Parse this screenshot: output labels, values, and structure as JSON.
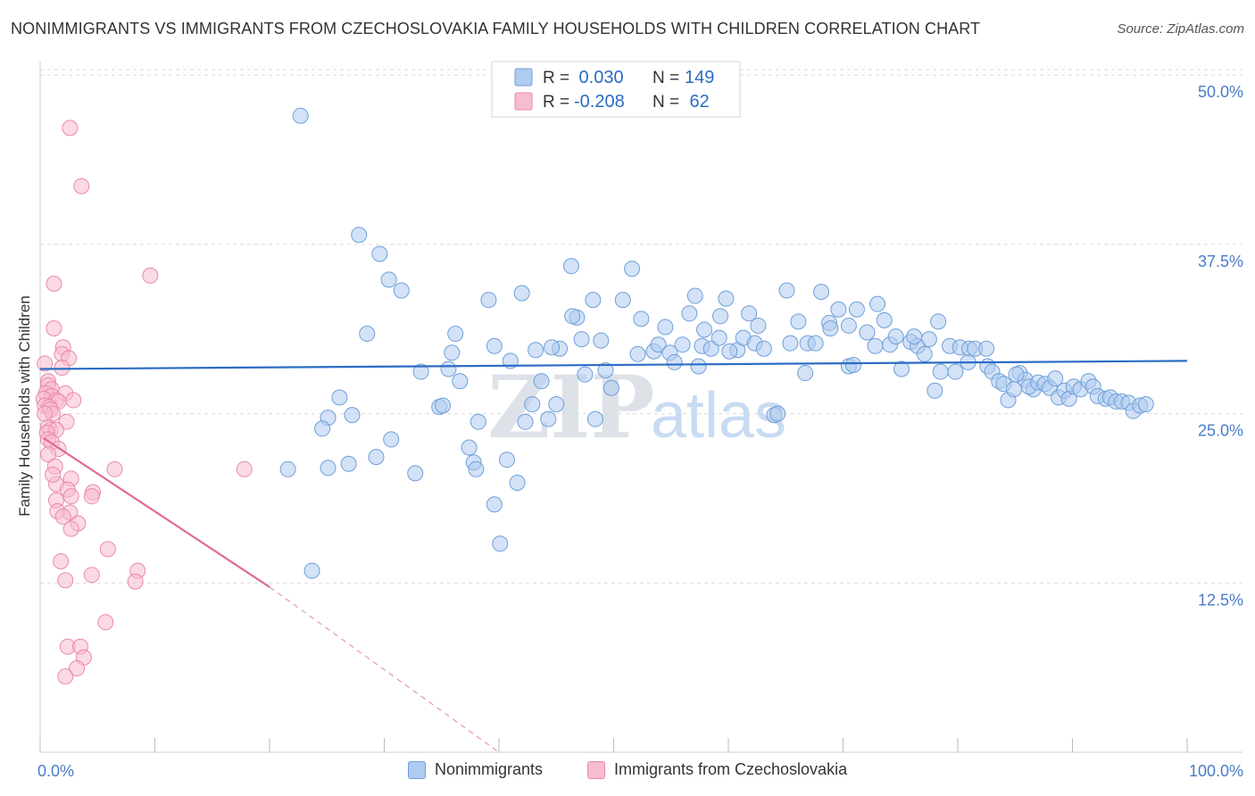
{
  "header": {
    "title": "NONIMMIGRANTS VS IMMIGRANTS FROM CZECHOSLOVAKIA FAMILY HOUSEHOLDS WITH CHILDREN CORRELATION CHART",
    "source": "Source: ZipAtlas.com"
  },
  "watermark": {
    "zip": "ZIP",
    "atlas": "atlas"
  },
  "colors": {
    "blue_fill": "#aecbf0",
    "blue_stroke": "#6f9fd8",
    "blue_line": "#2b6cc4",
    "pink_fill": "#f7bccd",
    "pink_stroke": "#ea8aa9",
    "pink_line": "#e06a93",
    "tick_label": "#4a7cc7",
    "grid": "#d9d9d9"
  },
  "legend_top": {
    "rows": [
      {
        "r_label": "R = ",
        "r_value": " 0.030",
        "n_label": "N = ",
        "n_value": "149"
      },
      {
        "r_label": "R = ",
        "r_value": "-0.208",
        "n_label": "N = ",
        "n_value": " 62"
      }
    ]
  },
  "chart_data": {
    "type": "scatter",
    "title": "NONIMMIGRANTS VS IMMIGRANTS FROM CZECHOSLOVAKIA FAMILY HOUSEHOLDS WITH CHILDREN CORRELATION CHART",
    "xlabel": "",
    "ylabel": "Family Households with Children",
    "xlim": [
      0,
      100
    ],
    "ylim": [
      0,
      51
    ],
    "x_tick_labels": [
      "0.0%",
      "100.0%"
    ],
    "y_ticks": [
      12.5,
      25.0,
      37.5,
      50.0
    ],
    "y_tick_labels": [
      "12.5%",
      "25.0%",
      "37.5%",
      "50.0%"
    ],
    "grid": "horizontal dashed",
    "legend_placement": "bottom-center",
    "series": [
      {
        "name": "Nonimmigrants",
        "color": "#aecbf0",
        "r": 0.03,
        "n": 149,
        "trend": {
          "x0": 0,
          "y0": 28.3,
          "x1": 100,
          "y1": 28.9
        },
        "points": [
          [
            22.7,
            47.0
          ],
          [
            27.8,
            38.2
          ],
          [
            29.6,
            36.8
          ],
          [
            30.4,
            34.9
          ],
          [
            31.5,
            34.1
          ],
          [
            28.5,
            30.9
          ],
          [
            26.1,
            26.2
          ],
          [
            25.1,
            24.7
          ],
          [
            27.2,
            24.9
          ],
          [
            24.6,
            23.9
          ],
          [
            30.6,
            23.1
          ],
          [
            26.9,
            21.3
          ],
          [
            25.1,
            21.0
          ],
          [
            29.3,
            21.8
          ],
          [
            21.6,
            20.9
          ],
          [
            32.7,
            20.6
          ],
          [
            23.7,
            13.4
          ],
          [
            35.6,
            28.3
          ],
          [
            35.9,
            29.5
          ],
          [
            36.2,
            30.9
          ],
          [
            36.6,
            27.4
          ],
          [
            34.8,
            25.5
          ],
          [
            35.1,
            25.6
          ],
          [
            38.2,
            24.4
          ],
          [
            37.8,
            21.4
          ],
          [
            38.0,
            20.9
          ],
          [
            39.1,
            33.4
          ],
          [
            39.6,
            30.0
          ],
          [
            41.0,
            28.9
          ],
          [
            40.7,
            21.6
          ],
          [
            41.6,
            19.9
          ],
          [
            39.6,
            18.3
          ],
          [
            40.1,
            15.4
          ],
          [
            42.0,
            33.9
          ],
          [
            43.2,
            29.7
          ],
          [
            43.7,
            27.4
          ],
          [
            42.9,
            25.7
          ],
          [
            44.3,
            24.6
          ],
          [
            45.3,
            29.8
          ],
          [
            45.0,
            25.7
          ],
          [
            46.3,
            35.9
          ],
          [
            46.8,
            32.1
          ],
          [
            46.4,
            32.2
          ],
          [
            47.2,
            30.5
          ],
          [
            48.2,
            33.4
          ],
          [
            48.9,
            30.4
          ],
          [
            48.4,
            24.6
          ],
          [
            49.3,
            28.2
          ],
          [
            49.8,
            26.9
          ],
          [
            50.8,
            33.4
          ],
          [
            51.6,
            35.7
          ],
          [
            52.1,
            29.4
          ],
          [
            52.4,
            32.0
          ],
          [
            53.5,
            29.6
          ],
          [
            53.9,
            30.1
          ],
          [
            54.5,
            31.4
          ],
          [
            54.9,
            29.5
          ],
          [
            55.3,
            28.8
          ],
          [
            56.0,
            30.1
          ],
          [
            56.6,
            32.4
          ],
          [
            57.1,
            33.7
          ],
          [
            57.7,
            30.0
          ],
          [
            57.9,
            31.2
          ],
          [
            58.5,
            29.8
          ],
          [
            59.3,
            32.2
          ],
          [
            59.2,
            30.6
          ],
          [
            59.8,
            33.5
          ],
          [
            60.8,
            29.7
          ],
          [
            61.3,
            30.6
          ],
          [
            61.8,
            32.4
          ],
          [
            62.3,
            30.2
          ],
          [
            62.6,
            31.5
          ],
          [
            63.1,
            29.8
          ],
          [
            64.0,
            24.9
          ],
          [
            64.3,
            25.0
          ],
          [
            65.1,
            34.1
          ],
          [
            65.4,
            30.2
          ],
          [
            66.1,
            31.8
          ],
          [
            66.7,
            28.0
          ],
          [
            66.9,
            30.2
          ],
          [
            68.1,
            34.0
          ],
          [
            68.8,
            31.7
          ],
          [
            68.9,
            31.3
          ],
          [
            69.6,
            32.7
          ],
          [
            70.5,
            31.5
          ],
          [
            70.5,
            28.5
          ],
          [
            70.9,
            28.6
          ],
          [
            71.2,
            32.7
          ],
          [
            72.1,
            31.0
          ],
          [
            72.8,
            30.0
          ],
          [
            73.0,
            33.1
          ],
          [
            73.6,
            31.9
          ],
          [
            74.1,
            30.1
          ],
          [
            74.6,
            30.7
          ],
          [
            75.1,
            28.3
          ],
          [
            75.9,
            30.3
          ],
          [
            76.5,
            30.0
          ],
          [
            77.1,
            29.4
          ],
          [
            77.5,
            30.5
          ],
          [
            78.3,
            31.8
          ],
          [
            78.0,
            26.7
          ],
          [
            78.5,
            28.1
          ],
          [
            79.3,
            30.0
          ],
          [
            79.8,
            28.1
          ],
          [
            80.2,
            29.9
          ],
          [
            81.0,
            29.8
          ],
          [
            81.5,
            29.8
          ],
          [
            80.9,
            28.8
          ],
          [
            82.5,
            29.8
          ],
          [
            82.6,
            28.5
          ],
          [
            83.0,
            28.1
          ],
          [
            83.6,
            27.4
          ],
          [
            84.0,
            27.2
          ],
          [
            84.4,
            26.0
          ],
          [
            84.9,
            26.8
          ],
          [
            85.4,
            28.0
          ],
          [
            85.9,
            27.5
          ],
          [
            86.6,
            26.8
          ],
          [
            86.2,
            27.0
          ],
          [
            87.0,
            27.3
          ],
          [
            87.6,
            27.2
          ],
          [
            88.0,
            26.9
          ],
          [
            88.5,
            27.6
          ],
          [
            88.8,
            26.2
          ],
          [
            89.3,
            26.7
          ],
          [
            89.7,
            26.1
          ],
          [
            90.1,
            27.0
          ],
          [
            90.7,
            26.8
          ],
          [
            91.4,
            27.4
          ],
          [
            91.8,
            27.0
          ],
          [
            92.2,
            26.3
          ],
          [
            92.9,
            26.1
          ],
          [
            93.3,
            26.2
          ],
          [
            93.8,
            25.9
          ],
          [
            94.3,
            25.9
          ],
          [
            94.9,
            25.8
          ],
          [
            95.3,
            25.2
          ],
          [
            95.9,
            25.6
          ],
          [
            96.4,
            25.7
          ],
          [
            57.4,
            28.5
          ],
          [
            42.3,
            24.4
          ],
          [
            37.4,
            22.5
          ],
          [
            33.2,
            28.1
          ],
          [
            44.6,
            29.9
          ],
          [
            47.5,
            27.9
          ],
          [
            60.1,
            29.6
          ],
          [
            67.6,
            30.2
          ],
          [
            76.2,
            30.7
          ],
          [
            85.1,
            27.9
          ]
        ]
      },
      {
        "name": "Immigrants from Czechoslovakia",
        "color": "#f7bccd",
        "r": -0.208,
        "n": 62,
        "trend": {
          "x0": 0.3,
          "y0": 23.2,
          "x1": 20.0,
          "y1": 12.2,
          "dash_x1": 40.0,
          "dash_y1": 0.0
        },
        "points": [
          [
            2.6,
            46.1
          ],
          [
            3.6,
            41.8
          ],
          [
            1.2,
            34.6
          ],
          [
            9.6,
            35.2
          ],
          [
            1.2,
            31.3
          ],
          [
            2.0,
            29.9
          ],
          [
            1.9,
            29.4
          ],
          [
            2.5,
            29.1
          ],
          [
            0.4,
            28.7
          ],
          [
            1.9,
            28.4
          ],
          [
            0.7,
            27.4
          ],
          [
            0.7,
            27.1
          ],
          [
            1.0,
            26.8
          ],
          [
            0.5,
            26.5
          ],
          [
            1.0,
            26.3
          ],
          [
            2.2,
            26.5
          ],
          [
            0.3,
            26.1
          ],
          [
            1.4,
            26.0
          ],
          [
            1.6,
            25.9
          ],
          [
            0.4,
            25.6
          ],
          [
            0.8,
            25.5
          ],
          [
            0.9,
            25.3
          ],
          [
            1.1,
            25.0
          ],
          [
            0.4,
            25.0
          ],
          [
            2.3,
            24.4
          ],
          [
            0.7,
            24.0
          ],
          [
            0.9,
            23.8
          ],
          [
            1.4,
            23.8
          ],
          [
            0.6,
            23.6
          ],
          [
            0.7,
            23.1
          ],
          [
            1.0,
            22.9
          ],
          [
            1.6,
            22.4
          ],
          [
            0.7,
            22.0
          ],
          [
            1.3,
            21.1
          ],
          [
            6.5,
            20.9
          ],
          [
            2.7,
            20.2
          ],
          [
            1.4,
            19.8
          ],
          [
            2.4,
            19.4
          ],
          [
            4.6,
            19.2
          ],
          [
            2.7,
            18.9
          ],
          [
            4.5,
            18.9
          ],
          [
            1.4,
            18.6
          ],
          [
            1.5,
            17.8
          ],
          [
            2.6,
            17.7
          ],
          [
            2.0,
            17.4
          ],
          [
            3.3,
            16.9
          ],
          [
            2.7,
            16.5
          ],
          [
            5.9,
            15.0
          ],
          [
            1.8,
            14.1
          ],
          [
            8.5,
            13.4
          ],
          [
            4.5,
            13.1
          ],
          [
            2.2,
            12.7
          ],
          [
            8.3,
            12.6
          ],
          [
            17.8,
            20.9
          ],
          [
            5.7,
            9.6
          ],
          [
            2.4,
            7.8
          ],
          [
            3.5,
            7.8
          ],
          [
            3.8,
            7.0
          ],
          [
            3.2,
            6.2
          ],
          [
            2.2,
            5.6
          ],
          [
            1.1,
            20.5
          ],
          [
            2.9,
            26.0
          ]
        ]
      }
    ]
  },
  "legend_bottom": {
    "items": [
      {
        "label": "Nonimmigrants"
      },
      {
        "label": "Immigrants from Czechoslovakia"
      }
    ]
  }
}
